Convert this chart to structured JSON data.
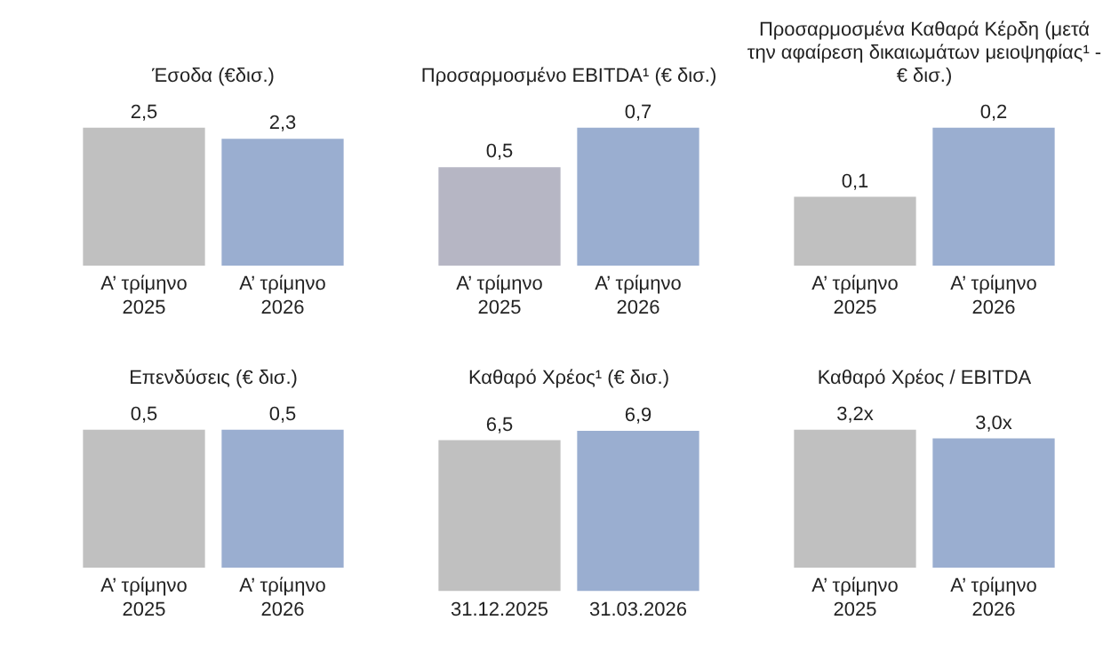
{
  "chart_data": [
    {
      "type": "bar",
      "title": "Έσοδα (€δισ.)",
      "categories": [
        "Α’ τρίμηνο 2025",
        "Α’ τρίμηνο 2026"
      ],
      "values": [
        2.5,
        2.3
      ],
      "colors": [
        "#c0c0c0",
        "#9aaed0"
      ],
      "value_labels": [
        "2,5",
        "2,3"
      ]
    },
    {
      "type": "bar",
      "title": "Προσαρμοσμένο EBITDA¹ (€ δισ.)",
      "categories": [
        "Α’ τρίμηνο 2025",
        "Α’ τρίμηνο 2026"
      ],
      "values": [
        0.5,
        0.7
      ],
      "colors": [
        "#b6b6c4",
        "#9aaed0"
      ],
      "value_labels": [
        "0,5",
        "0,7"
      ]
    },
    {
      "type": "bar",
      "title": "Προσαρμοσμένα Καθαρά Κέρδη (μετά την αφαίρεση δικαιωμάτων μειοψηφίας¹ - € δισ.)",
      "categories": [
        "Α’ τρίμηνο 2025",
        "Α’ τρίμηνο 2026"
      ],
      "values": [
        0.1,
        0.2
      ],
      "colors": [
        "#c0c0c0",
        "#9aaed0"
      ],
      "value_labels": [
        "0,1",
        "0,2"
      ]
    },
    {
      "type": "bar",
      "title": "Επενδύσεις (€ δισ.)",
      "categories": [
        "Α’ τρίμηνο 2025",
        "Α’ τρίμηνο 2026"
      ],
      "values": [
        0.5,
        0.5
      ],
      "colors": [
        "#c0c0c0",
        "#9aaed0"
      ],
      "value_labels": [
        "0,5",
        "0,5"
      ]
    },
    {
      "type": "bar",
      "title": "Καθαρό Χρέος¹ (€ δισ.)",
      "categories": [
        "31.12.2025",
        "31.03.2026"
      ],
      "values": [
        6.5,
        6.9
      ],
      "colors": [
        "#c0c0c0",
        "#9aaed0"
      ],
      "value_labels": [
        "6,5",
        "6,9"
      ]
    },
    {
      "type": "bar",
      "title": "Καθαρό Χρέος / EBITDA",
      "categories": [
        "Α’ τρίμηνο 2025",
        "Α’ τρίμηνο 2026"
      ],
      "values": [
        3.2,
        3.0
      ],
      "colors": [
        "#c0c0c0",
        "#9aaed0"
      ],
      "value_labels": [
        "3,2x",
        "3,0x"
      ]
    }
  ]
}
